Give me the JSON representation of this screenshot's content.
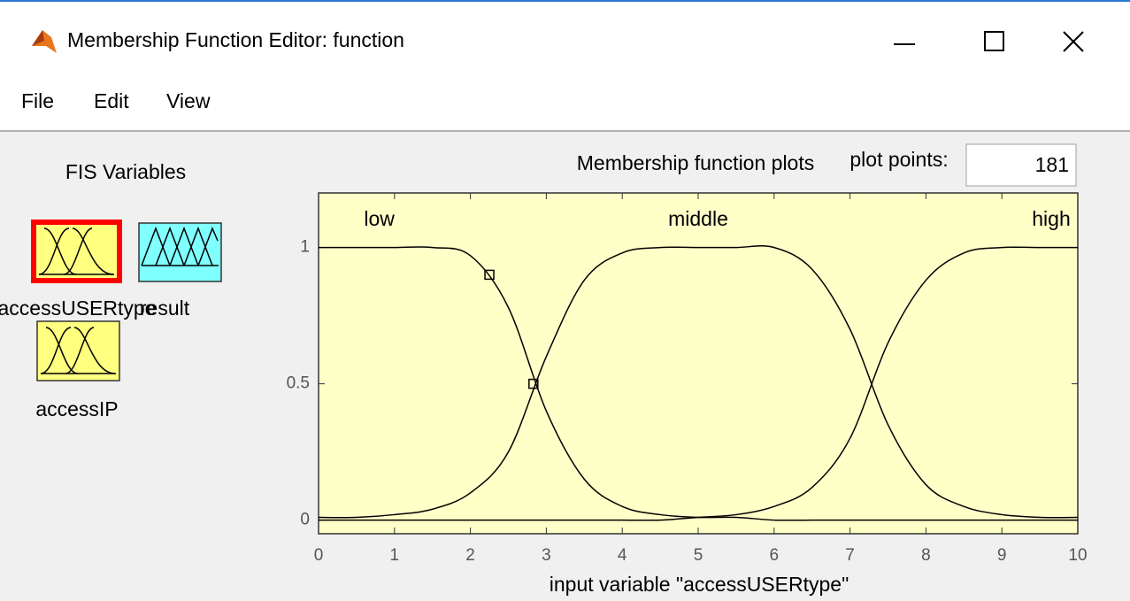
{
  "window": {
    "title": "Membership Function Editor: function"
  },
  "menu": [
    "File",
    "Edit",
    "View"
  ],
  "fis_variables": {
    "title": "FIS Variables",
    "items": [
      "accessUSERtype",
      "result",
      "accessIP"
    ]
  },
  "plot_points": {
    "label": "plot points:",
    "value": "181"
  },
  "plot": {
    "type": "line",
    "title": "Membership function plots",
    "x_label": "input variable \"accessUSERtype\"",
    "xlim": [
      0,
      10
    ],
    "ylim": [
      -0.05,
      1.2
    ],
    "xticks": [
      0,
      1,
      2,
      3,
      4,
      5,
      6,
      7,
      8,
      9,
      10
    ],
    "yticks": [
      0,
      0.5,
      1
    ],
    "background": "#ffffc8",
    "color": "#000000",
    "x": [
      0,
      0.5,
      1,
      1.5,
      2,
      2.5,
      3,
      3.5,
      4,
      4.5,
      5,
      5.5,
      6,
      6.5,
      7,
      7.5,
      8,
      8.5,
      9,
      9.5,
      10
    ],
    "series": [
      {
        "name": "low",
        "label_x": 0.8,
        "values": [
          1,
          1,
          1,
          1,
          0.97,
          0.78,
          0.4,
          0.15,
          0.05,
          0.02,
          0.01,
          0.01,
          0,
          0,
          0,
          0,
          0,
          0,
          0,
          0,
          0
        ]
      },
      {
        "name": "middle",
        "label_x": 5,
        "values": [
          0.01,
          0.01,
          0.02,
          0.04,
          0.1,
          0.25,
          0.6,
          0.88,
          0.98,
          1,
          1,
          1,
          1,
          0.92,
          0.7,
          0.35,
          0.13,
          0.05,
          0.02,
          0.01,
          0.01
        ]
      },
      {
        "name": "high",
        "label_x": 9.75,
        "values": [
          0,
          0,
          0,
          0,
          0,
          0,
          0,
          0,
          0,
          0,
          0.01,
          0.02,
          0.05,
          0.12,
          0.3,
          0.65,
          0.88,
          0.98,
          1,
          1,
          1
        ]
      }
    ],
    "handles": {
      "x": [
        2.25,
        2.83
      ],
      "y": [
        0.9,
        0.5
      ]
    }
  }
}
